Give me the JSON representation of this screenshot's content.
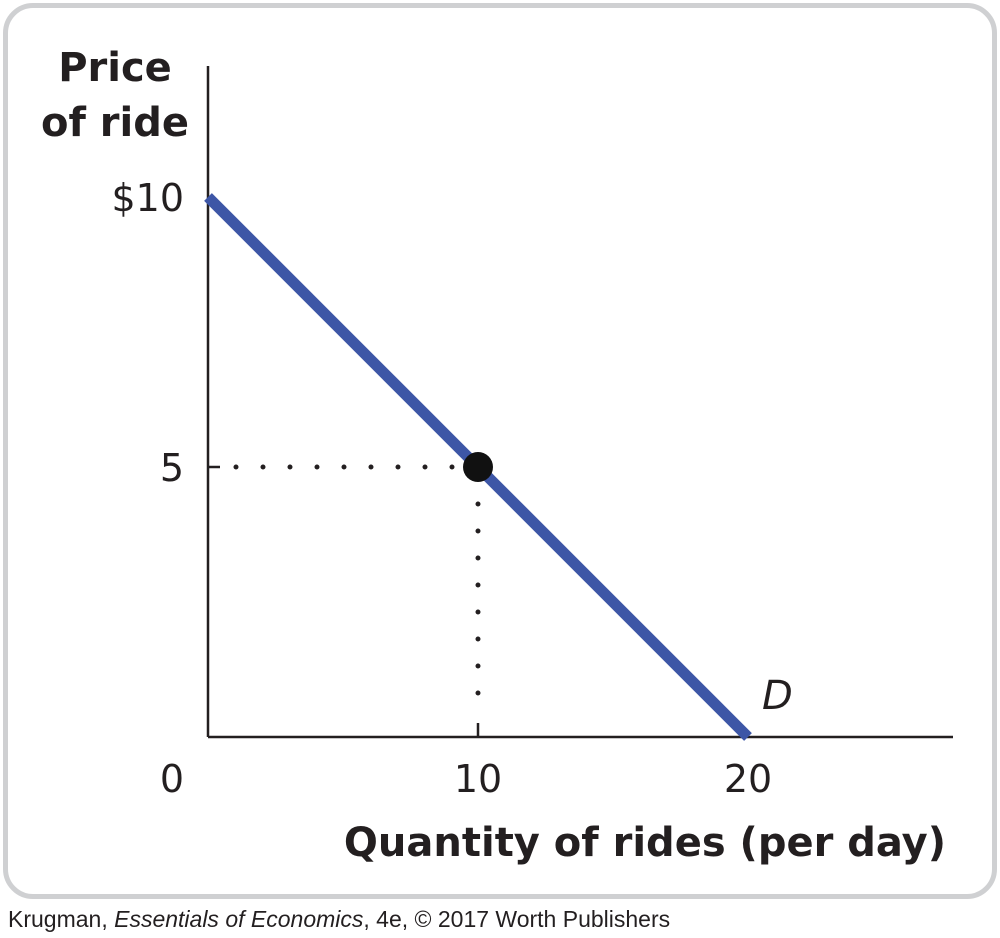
{
  "chart_data": {
    "type": "line",
    "title": "",
    "ylabel_lines": [
      "Price",
      "of ride"
    ],
    "xlabel": "Quantity of rides (per day)",
    "xlim": [
      0,
      27.5
    ],
    "ylim": [
      0,
      10.8
    ],
    "origin_label": "0",
    "x_ticks": [
      {
        "value": 10,
        "label": "10"
      },
      {
        "value": 20,
        "label": "20"
      }
    ],
    "y_ticks": [
      {
        "value": 10,
        "label": "$10"
      },
      {
        "value": 5,
        "label": "5"
      }
    ],
    "series": [
      {
        "name": "D",
        "color": "#3d56a6",
        "points": [
          [
            0,
            10
          ],
          [
            20,
            0
          ]
        ]
      }
    ],
    "highlight_point": {
      "x": 10,
      "y": 5,
      "color": "#111111"
    },
    "guide_lines": "dotted",
    "grid": false
  },
  "credit": {
    "author": "Krugman, ",
    "book": "Essentials of Economics",
    "rest": ", 4e, © 2017 Worth Publishers"
  }
}
